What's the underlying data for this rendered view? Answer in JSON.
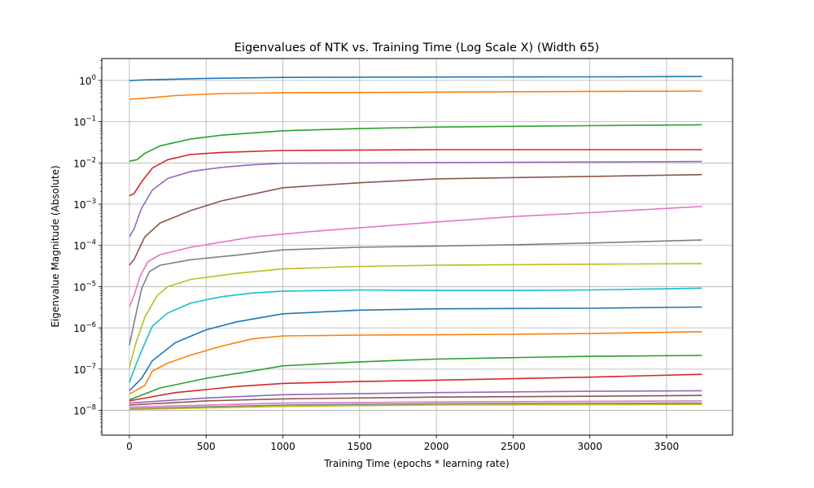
{
  "chart_data": {
    "type": "line",
    "title": "Eigenvalues of NTK vs. Training Time (Log Scale X) (Width 65)",
    "xlabel": "Training Time (epochs * learning rate)",
    "ylabel": "Eigenvalue Magnitude (Absolute)",
    "xlim": [
      -180,
      3930
    ],
    "ylim_log10": [
      -8.6,
      0.53
    ],
    "yscale": "log",
    "grid": true,
    "x_ticks": [
      0,
      500,
      1000,
      1500,
      2000,
      2500,
      3000,
      3500
    ],
    "x_tick_labels": [
      "0",
      "500",
      "1000",
      "1500",
      "2000",
      "2500",
      "3000",
      "3500"
    ],
    "y_ticks_exp": [
      -8,
      -7,
      -6,
      -5,
      -4,
      -3,
      -2,
      -1,
      0
    ],
    "y_tick_labels": [
      {
        "base": "10",
        "exp": "−8"
      },
      {
        "base": "10",
        "exp": "−7"
      },
      {
        "base": "10",
        "exp": "−6"
      },
      {
        "base": "10",
        "exp": "−5"
      },
      {
        "base": "10",
        "exp": "−4"
      },
      {
        "base": "10",
        "exp": "−3"
      },
      {
        "base": "10",
        "exp": "−2"
      },
      {
        "base": "10",
        "exp": "−1"
      },
      {
        "base": "10",
        "exp": "0"
      }
    ],
    "series": [
      {
        "color": "#1f77b4",
        "points": [
          [
            0,
            0.99
          ],
          [
            100,
            1.03
          ],
          [
            500,
            1.12
          ],
          [
            1000,
            1.18
          ],
          [
            2000,
            1.21
          ],
          [
            3000,
            1.22
          ],
          [
            3730,
            1.24
          ]
        ]
      },
      {
        "color": "#ff7f0e",
        "points": [
          [
            0,
            0.35
          ],
          [
            100,
            0.37
          ],
          [
            300,
            0.43
          ],
          [
            600,
            0.48
          ],
          [
            1000,
            0.5
          ],
          [
            2000,
            0.52
          ],
          [
            3000,
            0.54
          ],
          [
            3730,
            0.55
          ]
        ]
      },
      {
        "color": "#2ca02c",
        "points": [
          [
            0,
            0.011
          ],
          [
            50,
            0.012
          ],
          [
            100,
            0.017
          ],
          [
            200,
            0.026
          ],
          [
            400,
            0.038
          ],
          [
            600,
            0.047
          ],
          [
            1000,
            0.06
          ],
          [
            1500,
            0.068
          ],
          [
            2000,
            0.074
          ],
          [
            3000,
            0.08
          ],
          [
            3730,
            0.084
          ]
        ]
      },
      {
        "color": "#d62728",
        "points": [
          [
            0,
            0.0016
          ],
          [
            30,
            0.0018
          ],
          [
            80,
            0.0035
          ],
          [
            150,
            0.0075
          ],
          [
            250,
            0.012
          ],
          [
            400,
            0.016
          ],
          [
            600,
            0.018
          ],
          [
            1000,
            0.02
          ],
          [
            2000,
            0.021
          ],
          [
            3730,
            0.021
          ]
        ]
      },
      {
        "color": "#9467bd",
        "points": [
          [
            0,
            0.00016
          ],
          [
            30,
            0.00025
          ],
          [
            80,
            0.0008
          ],
          [
            150,
            0.0022
          ],
          [
            250,
            0.0042
          ],
          [
            400,
            0.0062
          ],
          [
            600,
            0.0078
          ],
          [
            800,
            0.009
          ],
          [
            1000,
            0.0098
          ],
          [
            2000,
            0.0102
          ],
          [
            3730,
            0.0108
          ]
        ]
      },
      {
        "color": "#8c564b",
        "points": [
          [
            0,
            3.3e-05
          ],
          [
            30,
            4.5e-05
          ],
          [
            100,
            0.00016
          ],
          [
            200,
            0.00035
          ],
          [
            400,
            0.0007
          ],
          [
            600,
            0.0012
          ],
          [
            1000,
            0.0025
          ],
          [
            1500,
            0.0033
          ],
          [
            2000,
            0.0041
          ],
          [
            3000,
            0.0047
          ],
          [
            3730,
            0.0052
          ]
        ]
      },
      {
        "color": "#e377c2",
        "points": [
          [
            0,
            3.2e-06
          ],
          [
            30,
            6e-06
          ],
          [
            70,
            1.8e-05
          ],
          [
            120,
            4e-05
          ],
          [
            200,
            6e-05
          ],
          [
            400,
            9e-05
          ],
          [
            800,
            0.00016
          ],
          [
            1200,
            0.00022
          ],
          [
            2000,
            0.00037
          ],
          [
            2500,
            0.0005
          ],
          [
            3000,
            0.00062
          ],
          [
            3730,
            0.00088
          ]
        ]
      },
      {
        "color": "#7f7f7f",
        "points": [
          [
            0,
            3.8e-07
          ],
          [
            30,
            1.3e-06
          ],
          [
            80,
            9e-06
          ],
          [
            130,
            2.3e-05
          ],
          [
            200,
            3.3e-05
          ],
          [
            400,
            4.5e-05
          ],
          [
            700,
            5.8e-05
          ],
          [
            1000,
            7.8e-05
          ],
          [
            1500,
            9e-05
          ],
          [
            2000,
            9.6e-05
          ],
          [
            2500,
            0.000104
          ],
          [
            3000,
            0.000114
          ],
          [
            3730,
            0.000135
          ]
        ]
      },
      {
        "color": "#bcbd22",
        "points": [
          [
            0,
            1.1e-07
          ],
          [
            40,
            4e-07
          ],
          [
            100,
            1.8e-06
          ],
          [
            180,
            6e-06
          ],
          [
            250,
            1e-05
          ],
          [
            400,
            1.5e-05
          ],
          [
            700,
            2.1e-05
          ],
          [
            1000,
            2.7e-05
          ],
          [
            1500,
            3.1e-05
          ],
          [
            2000,
            3.3e-05
          ],
          [
            3000,
            3.5e-05
          ],
          [
            3730,
            3.6e-05
          ]
        ]
      },
      {
        "color": "#17becf",
        "points": [
          [
            0,
            4.8e-08
          ],
          [
            50,
            1.5e-07
          ],
          [
            100,
            4.2e-07
          ],
          [
            150,
            1.1e-06
          ],
          [
            250,
            2.3e-06
          ],
          [
            400,
            4e-06
          ],
          [
            600,
            5.7e-06
          ],
          [
            800,
            7e-06
          ],
          [
            1000,
            7.8e-06
          ],
          [
            1500,
            8.3e-06
          ],
          [
            2000,
            8.1e-06
          ],
          [
            2500,
            8.1e-06
          ],
          [
            3000,
            8.3e-06
          ],
          [
            3730,
            9.2e-06
          ]
        ]
      },
      {
        "color": "#1f77b4",
        "points": [
          [
            0,
            3e-08
          ],
          [
            80,
            6e-08
          ],
          [
            150,
            1.6e-07
          ],
          [
            300,
            4.4e-07
          ],
          [
            500,
            9e-07
          ],
          [
            700,
            1.4e-06
          ],
          [
            1000,
            2.2e-06
          ],
          [
            1500,
            2.7e-06
          ],
          [
            2000,
            2.9e-06
          ],
          [
            3000,
            3e-06
          ],
          [
            3730,
            3.2e-06
          ]
        ]
      },
      {
        "color": "#ff7f0e",
        "points": [
          [
            0,
            2.5e-08
          ],
          [
            100,
            4e-08
          ],
          [
            150,
            9e-08
          ],
          [
            250,
            1.4e-07
          ],
          [
            400,
            2.2e-07
          ],
          [
            600,
            3.6e-07
          ],
          [
            800,
            5.4e-07
          ],
          [
            1000,
            6.4e-07
          ],
          [
            1500,
            6.7e-07
          ],
          [
            2000,
            6.8e-07
          ],
          [
            2500,
            7e-07
          ],
          [
            3000,
            7.3e-07
          ],
          [
            3730,
            8.1e-07
          ]
        ]
      },
      {
        "color": "#2ca02c",
        "points": [
          [
            0,
            1.8e-08
          ],
          [
            200,
            3.5e-08
          ],
          [
            500,
            6e-08
          ],
          [
            800,
            9e-08
          ],
          [
            1000,
            1.2e-07
          ],
          [
            1500,
            1.5e-07
          ],
          [
            2000,
            1.75e-07
          ],
          [
            2500,
            1.9e-07
          ],
          [
            3000,
            2.05e-07
          ],
          [
            3730,
            2.15e-07
          ]
        ]
      },
      {
        "color": "#d62728",
        "points": [
          [
            0,
            1.7e-08
          ],
          [
            300,
            2.7e-08
          ],
          [
            700,
            3.8e-08
          ],
          [
            1000,
            4.5e-08
          ],
          [
            1500,
            5e-08
          ],
          [
            2000,
            5.4e-08
          ],
          [
            3000,
            6.4e-08
          ],
          [
            3730,
            7.5e-08
          ]
        ]
      },
      {
        "color": "#9467bd",
        "points": [
          [
            0,
            1.5e-08
          ],
          [
            500,
            2e-08
          ],
          [
            1000,
            2.4e-08
          ],
          [
            2000,
            2.7e-08
          ],
          [
            3000,
            2.9e-08
          ],
          [
            3730,
            3e-08
          ]
        ]
      },
      {
        "color": "#8c564b",
        "points": [
          [
            0,
            1.35e-08
          ],
          [
            500,
            1.7e-08
          ],
          [
            1000,
            1.9e-08
          ],
          [
            2000,
            2.1e-08
          ],
          [
            3000,
            2.2e-08
          ],
          [
            3730,
            2.3e-08
          ]
        ]
      },
      {
        "color": "#e377c2",
        "points": [
          [
            0,
            1.2e-08
          ],
          [
            1000,
            1.5e-08
          ],
          [
            2000,
            1.6e-08
          ],
          [
            3730,
            1.7e-08
          ]
        ]
      },
      {
        "color": "#7f7f7f",
        "points": [
          [
            0,
            1.1e-08
          ],
          [
            1000,
            1.35e-08
          ],
          [
            2000,
            1.45e-08
          ],
          [
            3730,
            1.5e-08
          ]
        ]
      },
      {
        "color": "#bcbd22",
        "points": [
          [
            0,
            1.05e-08
          ],
          [
            1000,
            1.25e-08
          ],
          [
            2000,
            1.35e-08
          ],
          [
            3730,
            1.4e-08
          ]
        ]
      }
    ]
  }
}
